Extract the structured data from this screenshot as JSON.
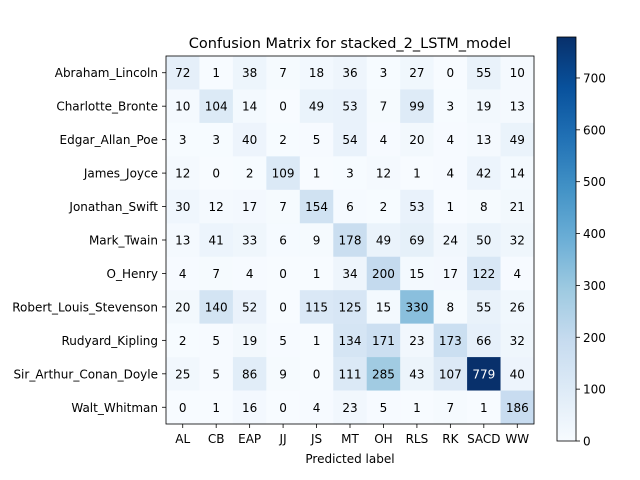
{
  "chart_data": {
    "type": "heatmap",
    "title": "Confusion Matrix for stacked_2_LSTM_model",
    "xlabel": "Predicted label",
    "ylabel": "",
    "row_labels": [
      "Abraham_Lincoln",
      "Charlotte_Bronte",
      "Edgar_Allan_Poe",
      "James_Joyce",
      "Jonathan_Swift",
      "Mark_Twain",
      "O_Henry",
      "Robert_Louis_Stevenson",
      "Rudyard_Kipling",
      "Sir_Arthur_Conan_Doyle",
      "Walt_Whitman"
    ],
    "col_labels": [
      "AL",
      "CB",
      "EAP",
      "JJ",
      "JS",
      "MT",
      "OH",
      "RLS",
      "RK",
      "SACD",
      "WW"
    ],
    "matrix": [
      [
        72,
        1,
        38,
        7,
        18,
        36,
        3,
        27,
        0,
        55,
        10
      ],
      [
        10,
        104,
        14,
        0,
        49,
        53,
        7,
        99,
        3,
        19,
        13
      ],
      [
        3,
        3,
        40,
        2,
        5,
        54,
        4,
        20,
        4,
        13,
        49
      ],
      [
        12,
        0,
        2,
        109,
        1,
        3,
        12,
        1,
        4,
        42,
        14
      ],
      [
        30,
        12,
        17,
        7,
        154,
        6,
        2,
        53,
        1,
        8,
        21
      ],
      [
        13,
        41,
        33,
        6,
        9,
        178,
        49,
        69,
        24,
        50,
        32
      ],
      [
        4,
        7,
        4,
        0,
        1,
        34,
        200,
        15,
        17,
        122,
        4
      ],
      [
        20,
        140,
        52,
        0,
        115,
        125,
        15,
        330,
        8,
        55,
        26
      ],
      [
        2,
        5,
        19,
        5,
        1,
        134,
        171,
        23,
        173,
        66,
        32
      ],
      [
        25,
        5,
        86,
        9,
        0,
        111,
        285,
        43,
        107,
        779,
        40
      ],
      [
        0,
        1,
        16,
        0,
        4,
        23,
        5,
        1,
        7,
        1,
        186
      ]
    ],
    "vmin": 0,
    "vmax": 779,
    "colorbar_ticks": [
      0,
      100,
      200,
      300,
      400,
      500,
      600,
      700
    ],
    "colormap": "Blues",
    "grid": false
  }
}
